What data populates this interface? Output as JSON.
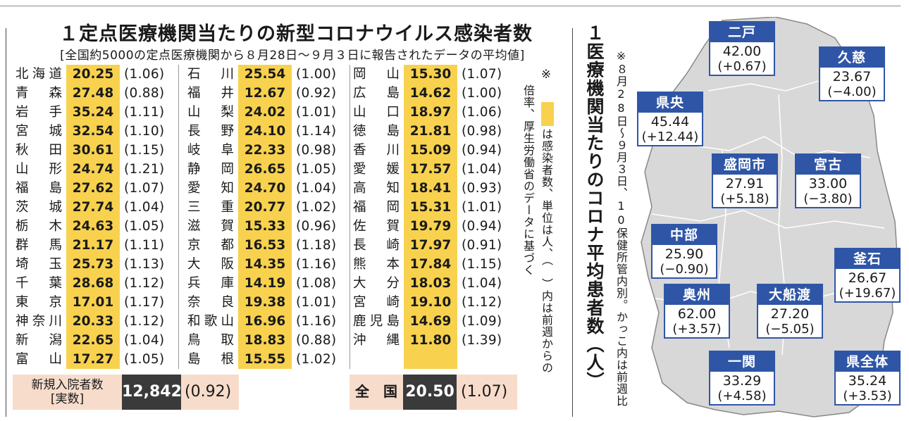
{
  "title": "１定点医療機関当たりの新型コロナウイルス感染者数",
  "subtitle": "[全国約5000の定点医療機関から８月28日～９月３日に報告されたデータの平均値]",
  "columns": [
    [
      {
        "pref": [
          "北",
          "海",
          "道"
        ],
        "value": "20.25",
        "ratio": "(1.06)"
      },
      {
        "pref": [
          "青",
          "森"
        ],
        "value": "27.48",
        "ratio": "(0.88)"
      },
      {
        "pref": [
          "岩",
          "手"
        ],
        "value": "35.24",
        "ratio": "(1.11)"
      },
      {
        "pref": [
          "宮",
          "城"
        ],
        "value": "32.54",
        "ratio": "(1.10)"
      },
      {
        "pref": [
          "秋",
          "田"
        ],
        "value": "30.61",
        "ratio": "(1.15)"
      },
      {
        "pref": [
          "山",
          "形"
        ],
        "value": "24.74",
        "ratio": "(1.21)"
      },
      {
        "pref": [
          "福",
          "島"
        ],
        "value": "27.62",
        "ratio": "(1.07)"
      },
      {
        "pref": [
          "茨",
          "城"
        ],
        "value": "27.74",
        "ratio": "(1.04)"
      },
      {
        "pref": [
          "栃",
          "木"
        ],
        "value": "24.63",
        "ratio": "(1.05)"
      },
      {
        "pref": [
          "群",
          "馬"
        ],
        "value": "21.17",
        "ratio": "(1.11)"
      },
      {
        "pref": [
          "埼",
          "玉"
        ],
        "value": "25.73",
        "ratio": "(1.13)"
      },
      {
        "pref": [
          "千",
          "葉"
        ],
        "value": "28.68",
        "ratio": "(1.12)"
      },
      {
        "pref": [
          "東",
          "京"
        ],
        "value": "17.01",
        "ratio": "(1.17)"
      },
      {
        "pref": [
          "神",
          "奈",
          "川"
        ],
        "value": "20.33",
        "ratio": "(1.12)"
      },
      {
        "pref": [
          "新",
          "潟"
        ],
        "value": "22.65",
        "ratio": "(1.04)"
      },
      {
        "pref": [
          "富",
          "山"
        ],
        "value": "17.27",
        "ratio": "(1.05)"
      }
    ],
    [
      {
        "pref": [
          "石",
          "川"
        ],
        "value": "25.54",
        "ratio": "(1.00)"
      },
      {
        "pref": [
          "福",
          "井"
        ],
        "value": "12.67",
        "ratio": "(0.92)"
      },
      {
        "pref": [
          "山",
          "梨"
        ],
        "value": "24.02",
        "ratio": "(1.01)"
      },
      {
        "pref": [
          "長",
          "野"
        ],
        "value": "24.10",
        "ratio": "(1.14)"
      },
      {
        "pref": [
          "岐",
          "阜"
        ],
        "value": "22.33",
        "ratio": "(0.98)"
      },
      {
        "pref": [
          "静",
          "岡"
        ],
        "value": "26.65",
        "ratio": "(1.05)"
      },
      {
        "pref": [
          "愛",
          "知"
        ],
        "value": "24.70",
        "ratio": "(1.04)"
      },
      {
        "pref": [
          "三",
          "重"
        ],
        "value": "20.77",
        "ratio": "(1.02)"
      },
      {
        "pref": [
          "滋",
          "賀"
        ],
        "value": "15.33",
        "ratio": "(0.96)"
      },
      {
        "pref": [
          "京",
          "都"
        ],
        "value": "16.53",
        "ratio": "(1.18)"
      },
      {
        "pref": [
          "大",
          "阪"
        ],
        "value": "14.35",
        "ratio": "(1.16)"
      },
      {
        "pref": [
          "兵",
          "庫"
        ],
        "value": "14.19",
        "ratio": "(1.08)"
      },
      {
        "pref": [
          "奈",
          "良"
        ],
        "value": "19.38",
        "ratio": "(1.01)"
      },
      {
        "pref": [
          "和",
          "歌",
          "山"
        ],
        "value": "16.96",
        "ratio": "(1.16)"
      },
      {
        "pref": [
          "鳥",
          "取"
        ],
        "value": "18.83",
        "ratio": "(0.88)"
      },
      {
        "pref": [
          "島",
          "根"
        ],
        "value": "15.55",
        "ratio": "(1.02)"
      }
    ],
    [
      {
        "pref": [
          "岡",
          "山"
        ],
        "value": "15.30",
        "ratio": "(1.07)"
      },
      {
        "pref": [
          "広",
          "島"
        ],
        "value": "14.62",
        "ratio": "(1.00)"
      },
      {
        "pref": [
          "山",
          "口"
        ],
        "value": "18.97",
        "ratio": "(1.06)"
      },
      {
        "pref": [
          "徳",
          "島"
        ],
        "value": "21.81",
        "ratio": "(0.98)"
      },
      {
        "pref": [
          "香",
          "川"
        ],
        "value": "15.09",
        "ratio": "(0.94)"
      },
      {
        "pref": [
          "愛",
          "媛"
        ],
        "value": "17.57",
        "ratio": "(1.04)"
      },
      {
        "pref": [
          "高",
          "知"
        ],
        "value": "18.41",
        "ratio": "(0.93)"
      },
      {
        "pref": [
          "福",
          "岡"
        ],
        "value": "15.31",
        "ratio": "(1.01)"
      },
      {
        "pref": [
          "佐",
          "賀"
        ],
        "value": "19.79",
        "ratio": "(0.94)"
      },
      {
        "pref": [
          "長",
          "崎"
        ],
        "value": "17.97",
        "ratio": "(0.91)"
      },
      {
        "pref": [
          "熊",
          "本"
        ],
        "value": "17.84",
        "ratio": "(1.15)"
      },
      {
        "pref": [
          "大",
          "分"
        ],
        "value": "18.03",
        "ratio": "(1.04)"
      },
      {
        "pref": [
          "宮",
          "崎"
        ],
        "value": "19.10",
        "ratio": "(1.12)"
      },
      {
        "pref": [
          "鹿",
          "児",
          "島"
        ],
        "value": "14.69",
        "ratio": "(1.09)"
      },
      {
        "pref": [
          "沖",
          "縄"
        ],
        "value": "11.80",
        "ratio": "(1.39)"
      }
    ]
  ],
  "hospital": {
    "label_line1": "新規入院者数",
    "label_line2": "[実数]",
    "value": "12,842",
    "ratio": "(0.92)"
  },
  "national": {
    "label": "全　国",
    "value": "20.50",
    "ratio": "(1.07)"
  },
  "note_a": "※",
  "note_b": "は感染者数、単位は人、（　）内は前週からの",
  "note_c": "倍率、厚生労働省のデータに基づく",
  "iwate_title": "１医療機関当たりのコロナ平均患者数（人）",
  "iwate_note_a": "※８月28日～９月３日、10保健所管内別。かっこ内は前週比",
  "regions": [
    {
      "name": "二戸",
      "value": "42.00",
      "diff": "(+0.67)"
    },
    {
      "name": "久慈",
      "value": "23.67",
      "diff": "(−4.00)"
    },
    {
      "name": "県央",
      "value": "45.44",
      "diff": "(+12.44)"
    },
    {
      "name": "盛岡市",
      "value": "27.91",
      "diff": "(+5.18)"
    },
    {
      "name": "宮古",
      "value": "33.00",
      "diff": "(−3.80)"
    },
    {
      "name": "中部",
      "value": "25.90",
      "diff": "(−0.90)"
    },
    {
      "name": "釜石",
      "value": "26.67",
      "diff": "(+19.67)"
    },
    {
      "name": "奥州",
      "value": "62.00",
      "diff": "(+3.57)"
    },
    {
      "name": "大船渡",
      "value": "27.20",
      "diff": "(−5.05)"
    },
    {
      "name": "一関",
      "value": "33.29",
      "diff": "(+4.58)"
    },
    {
      "name": "県全体",
      "value": "35.24",
      "diff": "(+3.53)"
    }
  ],
  "colors": {
    "highlight": "#f8d24e",
    "box_bg": "#f7dccb",
    "dark": "#3a3a3a",
    "map_blue": "#2f56a6",
    "map_gray": "#d8d8d8"
  }
}
